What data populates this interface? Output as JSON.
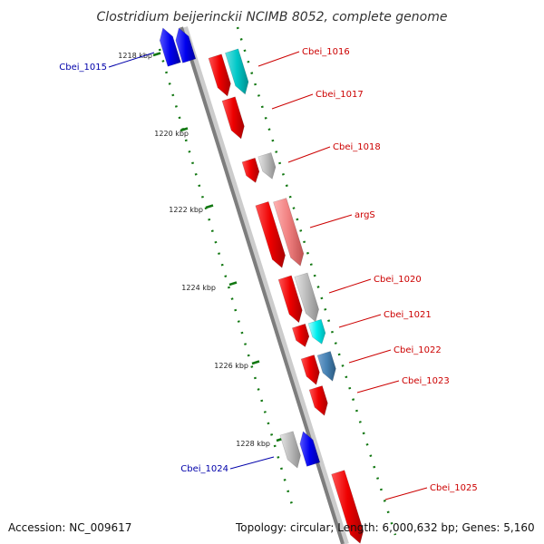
{
  "title": "Clostridium beijerinckii NCIMB 8052, complete genome",
  "accession": "Accession: NC_009617",
  "topology": "Topology: circular; Length: 6,000,632 bp; Genes: 5,160",
  "ticks": [
    {
      "label": "1218 kbp",
      "kbp": 1218
    },
    {
      "label": "1220 kbp",
      "kbp": 1220
    },
    {
      "label": "1222 kbp",
      "kbp": 1222
    },
    {
      "label": "1224 kbp",
      "kbp": 1224
    },
    {
      "label": "1226 kbp",
      "kbp": 1226
    },
    {
      "label": "1228 kbp",
      "kbp": 1228
    }
  ],
  "genes": [
    {
      "name": "Cbei_1015",
      "color": "#0000aa",
      "feature_colors": [
        "#0000ee",
        "#0000ee"
      ]
    },
    {
      "name": "Cbei_1016",
      "color": "#cc0000",
      "feature_colors": [
        "#ee0000",
        "#00c8c8"
      ]
    },
    {
      "name": "Cbei_1017",
      "color": "#cc0000",
      "feature_colors": [
        "#ee0000"
      ]
    },
    {
      "name": "Cbei_1018",
      "color": "#cc0000",
      "feature_colors": [
        "#ee0000",
        "#bbbbbb"
      ]
    },
    {
      "name": "argS",
      "color": "#cc0000",
      "feature_colors": [
        "#ee0000",
        "#f08080"
      ]
    },
    {
      "name": "Cbei_1020",
      "color": "#cc0000",
      "feature_colors": [
        "#ee0000",
        "#bbbbbb"
      ]
    },
    {
      "name": "Cbei_1021",
      "color": "#cc0000",
      "feature_colors": [
        "#ee0000",
        "#00eeee"
      ]
    },
    {
      "name": "Cbei_1022",
      "color": "#cc0000",
      "feature_colors": [
        "#ee0000",
        "#4682b4"
      ]
    },
    {
      "name": "Cbei_1023",
      "color": "#cc0000",
      "feature_colors": [
        "#ee0000"
      ]
    },
    {
      "name": "Cbei_1024",
      "color": "#0000aa",
      "feature_colors": [
        "#bbbbbb",
        "#0000ee"
      ]
    },
    {
      "name": "Cbei_1025",
      "color": "#cc0000",
      "feature_colors": [
        "#ee0000"
      ]
    }
  ]
}
